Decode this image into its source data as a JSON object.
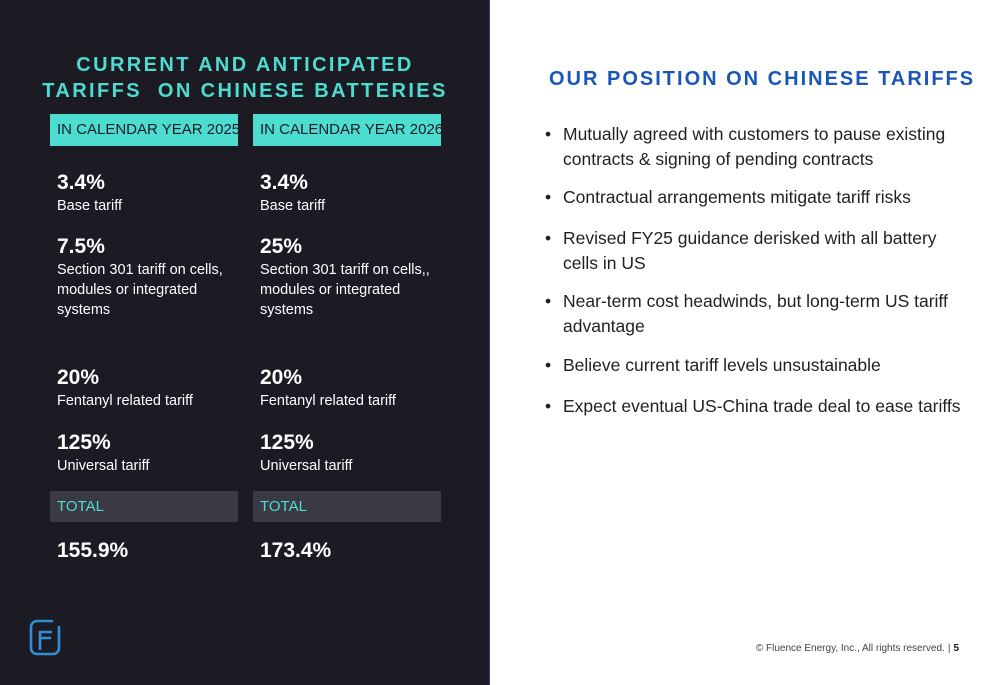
{
  "left": {
    "title_lines": [
      "CURRENT AND ANTICIPATED",
      "TARIFFS  ON CHINESE BATTERIES"
    ],
    "columns": [
      {
        "year_label": "IN CALENDAR YEAR 2025",
        "tariffs": [
          {
            "value": "3.4%",
            "desc": "Base tariff"
          },
          {
            "value": "7.5%",
            "desc": "Section 301 tariff on cells, modules or integrated systems"
          },
          {
            "value": "20%",
            "desc": "Fentanyl related tariff"
          },
          {
            "value": "125%",
            "desc": "Universal tariff"
          }
        ],
        "total_label": "TOTAL",
        "total_value": "155.9%"
      },
      {
        "year_label": "IN CALENDAR YEAR 2026",
        "tariffs": [
          {
            "value": "3.4%",
            "desc": "Base tariff"
          },
          {
            "value": "25%",
            "desc": "Section 301 tariff on cells,, modules or integrated systems"
          },
          {
            "value": "20%",
            "desc": "Fentanyl related tariff"
          },
          {
            "value": "125%",
            "desc": "Universal tariff"
          }
        ],
        "total_label": "TOTAL",
        "total_value": "173.4%"
      }
    ],
    "logo_icon": "fluence-logo-icon"
  },
  "right": {
    "title": "OUR POSITION ON CHINESE TARIFFS",
    "bullet_glyph": "•",
    "bullets": [
      "Mutually agreed with customers to pause existing contracts & signing of pending contracts",
      "Contractual arrangements mitigate tariff risks",
      "Revised FY25 guidance derisked with all battery cells in US",
      "Near-term cost headwinds, but long-term US tariff advantage",
      "Believe current tariff levels unsustainable",
      "Expect eventual US-China trade deal to ease tariffs"
    ]
  },
  "footer": {
    "copyright": "© Fluence Energy, Inc., All rights reserved.",
    "separator": "|",
    "page_number": "5"
  },
  "colors": {
    "panel_bg": "#1c1b24",
    "accent_teal": "#4ddcd0",
    "title_blue": "#1a56b8",
    "total_bar": "#3b3a44"
  }
}
